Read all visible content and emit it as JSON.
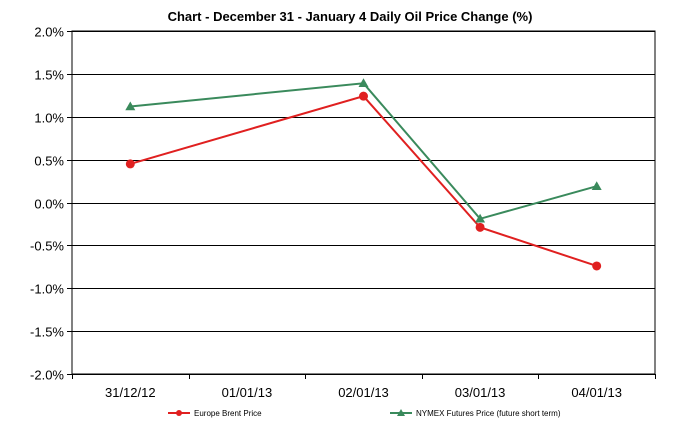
{
  "chart_data": {
    "type": "line",
    "title": "Chart - December 31 - January 4  Daily Oil Price Change (%)",
    "xlabel": "",
    "ylabel": "",
    "categories": [
      "31/12/12",
      "01/01/13",
      "02/01/13",
      "03/01/13",
      "04/01/13"
    ],
    "ylim": [
      -2.0,
      2.0
    ],
    "yticks": [
      2.0,
      1.5,
      1.0,
      0.5,
      0.0,
      -0.5,
      -1.0,
      -1.5,
      -2.0
    ],
    "ytick_labels": [
      "2.0%",
      "1.5%",
      "1.0%",
      "0.5%",
      "0.0%",
      "-0.5%",
      "-1.0%",
      "-1.5%",
      "-2.0%"
    ],
    "grid": "horizontal",
    "legend_position": "bottom",
    "series": [
      {
        "name": "Europe Brent Price",
        "color": "#e02020",
        "marker": "circle",
        "points": [
          {
            "category": "31/12/12",
            "value": 0.45
          },
          {
            "category": "02/01/13",
            "value": 1.24
          },
          {
            "category": "03/01/13",
            "value": -0.29
          },
          {
            "category": "04/01/13",
            "value": -0.74
          }
        ]
      },
      {
        "name": "NYMEX Futures Price (future short term)",
        "color": "#3a8a5c",
        "marker": "triangle",
        "points": [
          {
            "category": "31/12/12",
            "value": 1.12
          },
          {
            "category": "02/01/13",
            "value": 1.39
          },
          {
            "category": "03/01/13",
            "value": -0.19
          },
          {
            "category": "04/01/13",
            "value": 0.19
          }
        ]
      }
    ]
  }
}
